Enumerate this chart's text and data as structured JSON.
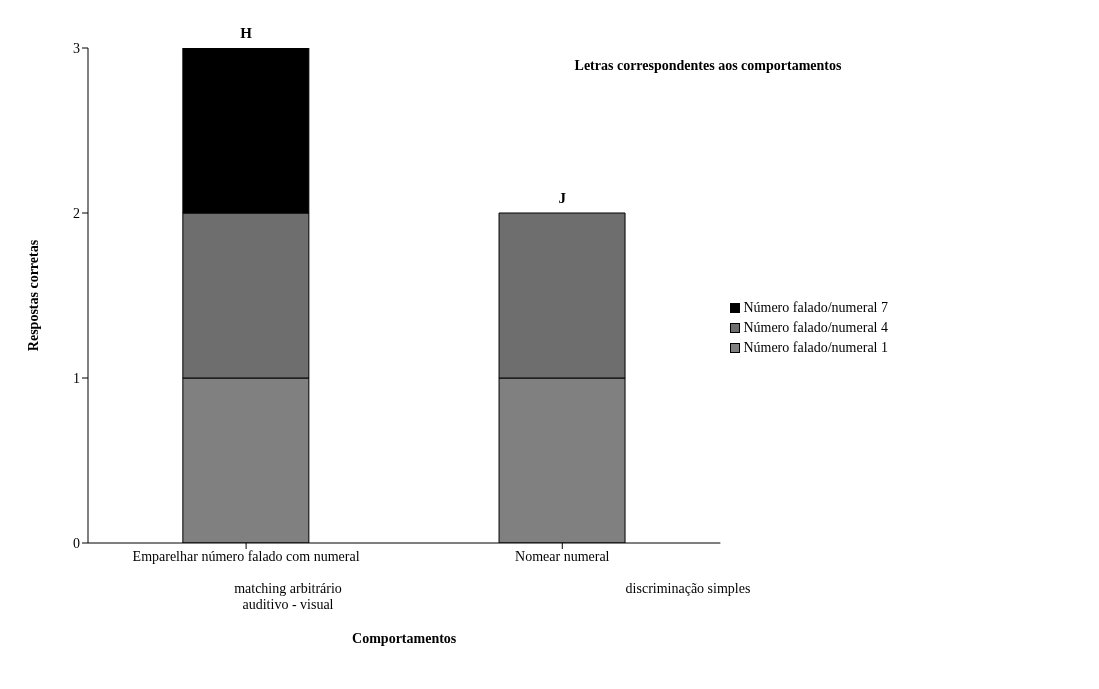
{
  "chart_data": {
    "type": "bar",
    "stacked": true,
    "xlabel": "Comportamentos",
    "ylabel": "Respostas corretas",
    "categories": [
      "Emparelhar número falado com numeral",
      "Nomear numeral"
    ],
    "series": [
      {
        "name": "Número falado/numeral 1",
        "color": "#808080",
        "values": [
          1,
          1
        ]
      },
      {
        "name": "Número falado/numeral 4",
        "color": "#6e6e6e",
        "values": [
          1,
          1
        ]
      },
      {
        "name": "Número falado/numeral 7",
        "color": "#000000",
        "values": [
          1,
          null
        ]
      }
    ],
    "ylim": [
      0,
      3
    ],
    "yticks": [
      0,
      1,
      2,
      3
    ],
    "grid": false,
    "legend": "right",
    "annotations": [
      {
        "text": "H",
        "x": "Emparelhar número falado com numeral",
        "y": 3
      },
      {
        "text": "J",
        "x": "Nomear numeral",
        "y": 2
      },
      "Letras correspondentes aos comportamentos",
      "matching arbitrário auditivo - visual",
      "discriminação simples"
    ]
  }
}
